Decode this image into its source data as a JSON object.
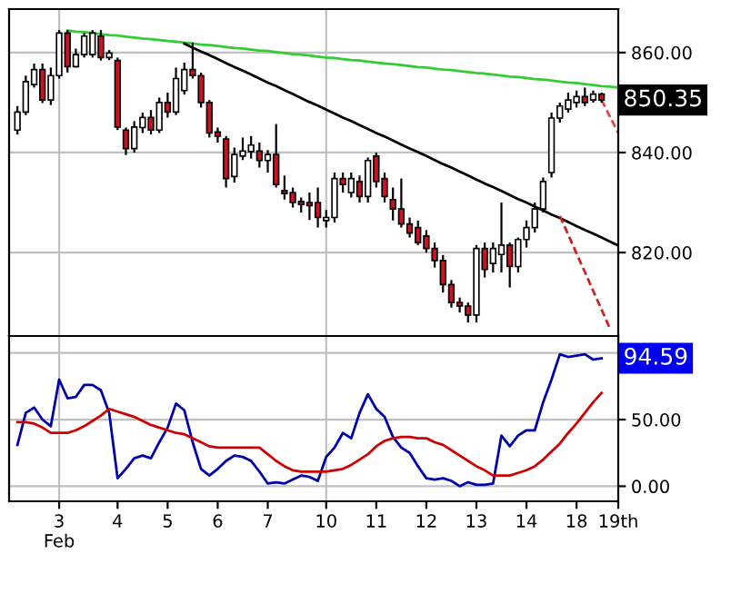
{
  "chart_data": [
    {
      "type": "candlestick",
      "tick_labels": "y",
      "grid": "y",
      "categories": [
        null,
        null,
        null,
        null,
        null,
        "3\nFeb",
        null,
        null,
        null,
        null,
        null,
        null,
        "4",
        null,
        null,
        null,
        null,
        null,
        "5",
        null,
        null,
        null,
        null,
        null,
        "6",
        null,
        null,
        null,
        null,
        null,
        "7",
        null,
        null,
        null,
        null,
        null,
        null,
        "10",
        null,
        null,
        null,
        null,
        null,
        "11",
        null,
        null,
        null,
        null,
        null,
        "12",
        null,
        null,
        null,
        null,
        null,
        "13",
        null,
        null,
        null,
        null,
        null,
        "14",
        null,
        null,
        null,
        null,
        null,
        "18",
        null,
        null,
        null,
        null,
        "19th"
      ],
      "ohlc": [
        [
          844.5,
          849.3,
          843.6,
          848.1
        ],
        [
          848.1,
          855.4,
          847.5,
          854.2
        ],
        [
          853.6,
          857.8,
          853,
          856.6
        ],
        [
          856.6,
          857.8,
          849.9,
          850.5
        ],
        [
          850.5,
          857,
          849.5,
          855.4
        ],
        [
          855.4,
          864.5,
          854.8,
          863.9
        ],
        [
          863.9,
          864.5,
          856,
          857.2
        ],
        [
          857.2,
          860.8,
          857,
          859.6
        ],
        [
          859.6,
          863.9,
          859,
          863.3
        ],
        [
          859.6,
          864.5,
          859,
          863.9
        ],
        [
          863.3,
          864.5,
          858.4,
          859
        ],
        [
          859,
          860.5,
          858.5,
          859.9
        ],
        [
          858.4,
          859,
          844.5,
          845.1
        ],
        [
          844.5,
          845,
          839.5,
          840.8
        ],
        [
          840.8,
          846.3,
          840,
          845.1
        ],
        [
          845,
          848,
          843.9,
          847
        ],
        [
          847,
          848.5,
          843.6,
          844.5
        ],
        [
          844.5,
          851,
          843.9,
          850
        ],
        [
          850,
          852,
          847,
          848.1
        ],
        [
          848.1,
          857,
          847.5,
          854.8
        ],
        [
          852.4,
          858,
          851.6,
          856.6
        ],
        [
          856.6,
          862,
          854.8,
          855.4
        ],
        [
          855.4,
          856,
          849,
          850
        ],
        [
          850,
          850.5,
          843,
          843.9
        ],
        [
          844.1,
          845,
          842,
          843.3
        ],
        [
          842.7,
          843.3,
          833,
          834.8
        ],
        [
          835.2,
          841,
          834,
          839.6
        ],
        [
          839.3,
          843,
          838.5,
          840.3
        ],
        [
          840.2,
          843.3,
          838.8,
          841.5
        ],
        [
          840.3,
          842,
          837,
          838.4
        ],
        [
          838.4,
          840.5,
          836,
          839.6
        ],
        [
          839.6,
          845.7,
          833,
          833.6
        ],
        [
          832.4,
          835.4,
          830.6,
          831.8
        ],
        [
          832,
          833,
          829,
          830
        ],
        [
          830.2,
          831,
          828,
          829.6
        ],
        [
          830,
          832,
          826.5,
          829.4
        ],
        [
          830,
          833,
          825,
          827
        ],
        [
          826.4,
          828.5,
          825,
          827
        ],
        [
          827,
          836,
          826,
          834.8
        ],
        [
          834.8,
          836,
          832,
          833.6
        ],
        [
          832,
          836,
          831,
          834.8
        ],
        [
          834.2,
          835.4,
          830,
          831.2
        ],
        [
          831.2,
          839,
          830,
          838.4
        ],
        [
          839.3,
          840,
          833,
          834.2
        ],
        [
          834.8,
          836,
          830,
          831.2
        ],
        [
          830.6,
          833,
          826.4,
          828.7
        ],
        [
          828.7,
          834.8,
          825,
          825.7
        ],
        [
          825.7,
          827,
          823,
          823.9
        ],
        [
          825,
          826.4,
          821.5,
          822
        ],
        [
          823.3,
          824.5,
          820,
          820.8
        ],
        [
          820.8,
          822,
          817,
          818.4
        ],
        [
          818.4,
          819.5,
          812,
          813.6
        ],
        [
          813.6,
          814.5,
          809,
          810
        ],
        [
          810,
          811,
          808,
          809.3
        ],
        [
          809.3,
          810,
          806,
          807.5
        ],
        [
          807.5,
          821.5,
          806,
          820.8
        ],
        [
          820.8,
          822,
          815,
          816.6
        ],
        [
          817.8,
          822,
          816,
          820.8
        ],
        [
          819.6,
          830,
          816,
          821.5
        ],
        [
          821.5,
          822,
          813,
          817.2
        ],
        [
          817.2,
          823,
          816,
          822.6
        ],
        [
          822.6,
          826.4,
          821,
          825
        ],
        [
          825,
          830,
          824,
          828.7
        ],
        [
          828.7,
          835,
          828,
          834.2
        ],
        [
          836,
          848,
          835,
          846.9
        ],
        [
          846.9,
          850,
          846,
          849.3
        ],
        [
          848.7,
          852,
          848,
          850.5
        ],
        [
          850,
          852.4,
          849,
          851.2
        ],
        [
          851.2,
          853,
          849.3,
          850
        ],
        [
          850.5,
          852.4,
          850,
          851.7
        ],
        [
          851.7,
          852,
          850,
          850.5
        ],
        null,
        null
      ],
      "colors": [
        "#ffffff",
        "#ffffff",
        "#ffffff",
        "#cc1122",
        "#ffffff",
        "#ffffff",
        "#cc1122",
        "#ffffff",
        "#ffffff",
        "#ffffff",
        "#cc1122",
        "#ffffff",
        "#cc1122",
        "#cc1122",
        "#ffffff",
        "#ffffff",
        "#cc1122",
        "#ffffff",
        "#cc1122",
        "#ffffff",
        "#ffffff",
        "#cc1122",
        "#cc1122",
        "#cc1122",
        "#cc1122",
        "#cc1122",
        "#ffffff",
        "#ffffff",
        "#ffffff",
        "#cc1122",
        "#ffffff",
        "#cc1122",
        "#cc1122",
        "#cc1122",
        "#cc1122",
        "#cc1122",
        "#cc1122",
        "#ffffff",
        "#ffffff",
        "#cc1122",
        "#ffffff",
        "#cc1122",
        "#ffffff",
        "#cc1122",
        "#cc1122",
        "#cc1122",
        "#cc1122",
        "#cc1122",
        "#cc1122",
        "#cc1122",
        "#cc1122",
        "#cc1122",
        "#cc1122",
        "#cc1122",
        "#cc1122",
        "#ffffff",
        "#cc1122",
        "#ffffff",
        "#ffffff",
        "#cc1122",
        "#ffffff",
        "#ffffff",
        "#ffffff",
        "#ffffff",
        "#ffffff",
        "#ffffff",
        "#ffffff",
        "#ffffff",
        "#cc1122",
        "#ffffff",
        "#cc1122",
        null,
        null
      ],
      "series": [
        {
          "type": "line",
          "color": "#33cc33",
          "values": [
            null,
            null,
            null,
            null,
            null,
            null,
            864.4,
            864.2,
            864.1,
            863.9,
            863.7,
            863.5,
            863.4,
            863.2,
            863.0,
            862.8,
            862.7,
            862.5,
            862.3,
            862.2,
            862.0,
            861.8,
            861.6,
            861.5,
            861.3,
            861.1,
            860.9,
            860.8,
            860.6,
            860.4,
            860.3,
            860.1,
            859.9,
            859.7,
            859.6,
            859.4,
            859.2,
            859.0,
            858.9,
            858.7,
            858.5,
            858.4,
            858.2,
            858.0,
            857.8,
            857.7,
            857.5,
            857.3,
            857.1,
            857.0,
            856.8,
            856.6,
            856.5,
            856.3,
            856.1,
            855.9,
            855.8,
            855.6,
            855.4,
            855.2,
            855.1,
            854.9,
            854.7,
            854.6,
            854.4,
            854.2,
            854.0,
            853.9,
            853.7,
            853.5,
            853.3,
            853.2,
            853.0
          ]
        },
        {
          "type": "line",
          "color": "#000000",
          "values": [
            null,
            null,
            null,
            null,
            null,
            null,
            null,
            null,
            null,
            null,
            null,
            null,
            null,
            null,
            null,
            null,
            null,
            null,
            null,
            null,
            861.8,
            861.0,
            860.2,
            859.5,
            858.7,
            857.9,
            857.1,
            856.4,
            855.6,
            854.8,
            854.0,
            853.3,
            852.5,
            851.7,
            850.9,
            850.1,
            849.4,
            848.6,
            847.8,
            847.0,
            846.3,
            845.5,
            844.7,
            843.9,
            843.2,
            842.4,
            841.6,
            840.8,
            840.1,
            839.3,
            838.5,
            837.7,
            837.0,
            836.2,
            835.4,
            834.6,
            833.8,
            833.1,
            832.3,
            831.5,
            830.7,
            830.0,
            829.2,
            828.4,
            827.6,
            826.9,
            826.1,
            825.3,
            824.5,
            823.8,
            823.0,
            822.2,
            821.4
          ]
        },
        {
          "type": "line",
          "color": "#e04848",
          "line_style": "dashed",
          "values": [
            null,
            null,
            null,
            null,
            null,
            null,
            null,
            null,
            null,
            null,
            null,
            null,
            null,
            null,
            null,
            null,
            null,
            null,
            null,
            null,
            null,
            null,
            null,
            null,
            null,
            null,
            null,
            null,
            null,
            null,
            null,
            null,
            null,
            null,
            null,
            null,
            null,
            null,
            null,
            null,
            null,
            null,
            null,
            null,
            null,
            null,
            null,
            null,
            null,
            null,
            null,
            null,
            null,
            null,
            null,
            null,
            null,
            null,
            null,
            null,
            null,
            null,
            null,
            null,
            null,
            null,
            null,
            null,
            null,
            null,
            850.5,
            847.2,
            843.9
          ]
        },
        {
          "type": "line",
          "color": "#cc2222",
          "line_style": "dashed",
          "values": [
            null,
            null,
            null,
            null,
            null,
            null,
            null,
            null,
            null,
            null,
            null,
            null,
            null,
            null,
            null,
            null,
            null,
            null,
            null,
            null,
            null,
            null,
            null,
            null,
            null,
            null,
            null,
            null,
            null,
            null,
            null,
            null,
            null,
            null,
            null,
            null,
            null,
            null,
            null,
            null,
            null,
            null,
            null,
            null,
            null,
            null,
            null,
            null,
            null,
            null,
            null,
            null,
            null,
            null,
            null,
            null,
            null,
            null,
            null,
            null,
            null,
            null,
            null,
            null,
            null,
            827.3,
            823.6,
            819.8,
            816.1,
            812.3,
            808.6,
            804.8,
            null
          ]
        }
      ],
      "ylim": [
        803.3,
        868.7
      ],
      "yticks": [
        {
          "value": 820,
          "label": "820.00"
        },
        {
          "value": 840,
          "label": "840.00"
        },
        {
          "value": 860,
          "label": "860.00"
        }
      ],
      "ref_lines": [
        {
          "axis": "x",
          "value": "3\nFeb",
          "color": "#c0c0c0"
        },
        {
          "axis": "x",
          "value": "10",
          "color": "#c0c0c0"
        }
      ],
      "annotations": [
        "850.35"
      ]
    },
    {
      "type": "line",
      "grid": "y",
      "categories": [
        null,
        null,
        null,
        null,
        null,
        "3\nFeb",
        null,
        null,
        null,
        null,
        null,
        null,
        "4",
        null,
        null,
        null,
        null,
        null,
        "5",
        null,
        null,
        null,
        null,
        null,
        "6",
        null,
        null,
        null,
        null,
        null,
        "7",
        null,
        null,
        null,
        null,
        null,
        null,
        "10",
        null,
        null,
        null,
        null,
        null,
        "11",
        null,
        null,
        null,
        null,
        null,
        "12",
        null,
        null,
        null,
        null,
        null,
        "13",
        null,
        null,
        null,
        null,
        null,
        "14",
        null,
        null,
        null,
        null,
        null,
        "18",
        null,
        null,
        null,
        null,
        "19th"
      ],
      "series": [
        {
          "color": "#0000aa",
          "values": [
            31,
            55,
            59,
            50,
            45,
            80,
            66,
            67,
            76,
            76,
            72,
            55,
            6,
            13,
            21,
            23,
            21,
            33,
            44,
            62,
            57,
            33,
            13,
            8,
            13,
            19,
            23,
            22,
            19,
            11,
            2,
            3,
            2,
            5,
            8,
            7,
            4,
            22,
            29,
            40,
            36,
            55,
            69,
            58,
            52,
            37,
            29,
            25,
            15,
            6,
            5,
            6,
            4,
            0,
            3,
            1,
            1,
            2,
            38,
            30,
            38,
            42,
            42,
            63,
            80,
            99,
            97,
            98,
            99,
            95,
            96,
            null,
            null
          ]
        },
        {
          "color": "#cc0000",
          "values": [
            48,
            48,
            47,
            44,
            40,
            40,
            40,
            42,
            45,
            49,
            53,
            58,
            56,
            54,
            52,
            49,
            46,
            44,
            42,
            40,
            39,
            36,
            33,
            30,
            29,
            29,
            29,
            29,
            29,
            29,
            24,
            19,
            15,
            12,
            11,
            11,
            11,
            11,
            12,
            13,
            16,
            20,
            24,
            30,
            34,
            36,
            37,
            37,
            36,
            36,
            33,
            31,
            27,
            23,
            19,
            15,
            12,
            8,
            8,
            8,
            10,
            12,
            15,
            20,
            26,
            32,
            40,
            47,
            55,
            63,
            70,
            null,
            null
          ]
        }
      ],
      "ylim": [
        -11.3,
        112.7
      ],
      "yticks": [
        {
          "value": 0,
          "label": "0.00"
        },
        {
          "value": 50,
          "label": "50.00"
        },
        {
          "value": 100,
          "label": null
        }
      ],
      "ref_lines": [
        {
          "axis": "x",
          "value": "3\nFeb",
          "color": "#c0c0c0"
        },
        {
          "axis": "x",
          "value": "10",
          "color": "#c0c0c0"
        }
      ],
      "annotations": [
        "94.59"
      ]
    }
  ]
}
